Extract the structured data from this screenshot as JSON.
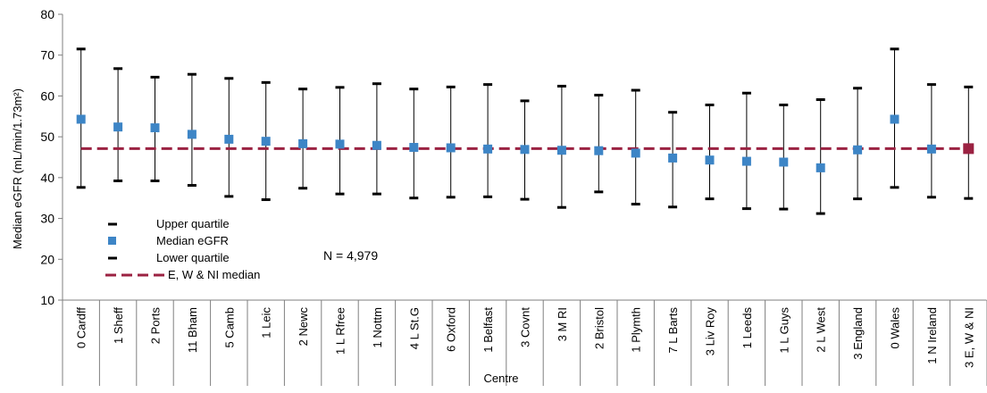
{
  "chart_data": {
    "type": "scatter",
    "xlabel": "Centre",
    "ylabel": "Median eGFR (mL/min/1.73m²)",
    "ylim": [
      10,
      80
    ],
    "yticks": [
      10,
      20,
      30,
      40,
      50,
      60,
      70,
      80
    ],
    "grid": false,
    "categories": [
      "0 Cardff",
      "1 Sheff",
      "2 Ports",
      "11 Bham",
      "5 Camb",
      "1 Leic",
      "2 Newc",
      "1 L Rfree",
      "1 Nottm",
      "4 L St.G",
      "6 Oxford",
      "1 Belfast",
      "3 Covnt",
      "3 M RI",
      "2 Bristol",
      "1 Plymth",
      "7 L Barts",
      "3 Liv Roy",
      "1 Leeds",
      "1 L Guys",
      "2 L West",
      "3 England",
      "0 Wales",
      "1 N Ireland",
      "3 E, W & NI"
    ],
    "series": [
      {
        "name": "Upper quartile",
        "values": [
          71.5,
          66.7,
          64.6,
          65.3,
          64.3,
          63.3,
          61.7,
          62.1,
          63.0,
          61.7,
          62.2,
          62.8,
          58.8,
          62.4,
          60.2,
          61.4,
          56.0,
          57.8,
          60.7,
          57.8,
          59.1,
          61.9,
          71.5,
          62.8,
          62.2
        ]
      },
      {
        "name": "Median eGFR",
        "values": [
          54.3,
          52.4,
          52.2,
          50.6,
          49.4,
          48.9,
          48.3,
          48.2,
          47.9,
          47.4,
          47.3,
          47.0,
          46.9,
          46.7,
          46.6,
          46.0,
          44.8,
          44.3,
          44.0,
          43.8,
          42.4,
          46.8,
          54.3,
          47.0,
          47.1
        ]
      },
      {
        "name": "Lower quartile",
        "values": [
          37.6,
          39.2,
          39.2,
          38.1,
          35.4,
          34.6,
          37.4,
          36.0,
          36.0,
          35.0,
          35.2,
          35.3,
          34.7,
          32.7,
          36.5,
          33.5,
          32.8,
          34.8,
          32.4,
          32.3,
          31.2,
          34.8,
          37.6,
          35.2,
          34.9
        ]
      }
    ],
    "reference_line": {
      "name": "E, W & NI median",
      "value": 47.1
    },
    "annotation": "N = 4,979",
    "legend": [
      "Upper quartile",
      "Median eGFR",
      "Lower quartile",
      "E, W & NI median"
    ],
    "legend_placement": "bottom-left inside plot",
    "colors": {
      "median": "#3d85c6",
      "highlight": "#9b2242",
      "reference": "#9b2242",
      "whisker": "#000000",
      "axis": "#7f7f7f"
    }
  }
}
